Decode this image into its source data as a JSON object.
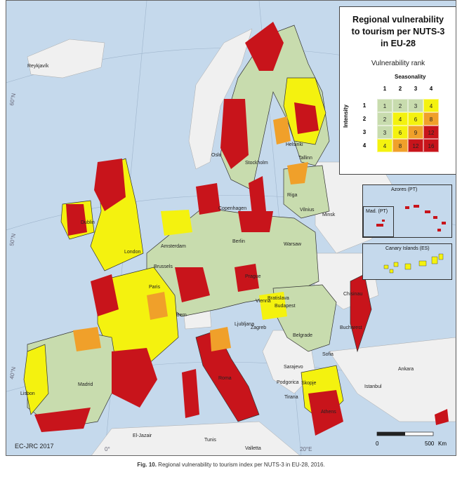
{
  "map": {
    "credit": "EC-JRC 2017",
    "coords": [
      "60°N",
      "50°N",
      "40°N",
      "0°",
      "20°E"
    ],
    "cities": [
      "Reykjavík",
      "Oslo",
      "Stockholm",
      "Helsinki",
      "Tallinn",
      "Riga",
      "Vilnius",
      "Minsk",
      "Copenhagen",
      "Dublin",
      "London",
      "Amsterdam",
      "Brussels",
      "Berlin",
      "Warsaw",
      "Paris",
      "Prague",
      "Vienna",
      "Bratislava",
      "Budapest",
      "Bern",
      "Ljubljana",
      "Zagreb",
      "Belgrade",
      "Bucharest",
      "Chisinau",
      "Sarajevo",
      "Podgorica",
      "Skopje",
      "Sofia",
      "Tirana",
      "Roma",
      "Madrid",
      "Lisbon",
      "Athens",
      "Ankara",
      "Istanbul",
      "El-Jazair",
      "Tunis",
      "Valletta"
    ],
    "colors": {
      "sea": "#c5d9ec",
      "nonEU": "#f0f0f0",
      "low": "#c8dcae",
      "medium": "#f4f20f",
      "high": "#f0a02a",
      "veryhigh": "#c8141b"
    },
    "scale": {
      "zero": "0",
      "max": "500",
      "unit": "Km"
    }
  },
  "legend": {
    "title_lines": [
      "Regional vulnerability",
      "to tourism per NUTS-3",
      "in EU-28"
    ],
    "subtitle": "Vulnerability rank",
    "seasonality_label": "Seasonality",
    "intensity_label": "Intensity",
    "columns": [
      "1",
      "2",
      "3",
      "4"
    ],
    "rows": [
      "1",
      "2",
      "3",
      "4"
    ],
    "matrix": [
      [
        "1",
        "2",
        "3",
        "4"
      ],
      [
        "2",
        "4",
        "6",
        "8"
      ],
      [
        "3",
        "6",
        "9",
        "12"
      ],
      [
        "4",
        "8",
        "12",
        "16"
      ]
    ]
  },
  "insets": {
    "azores": "Azores (PT)",
    "madeira": "Mad. (PT)",
    "canary": "Canary Islands (ES)"
  },
  "caption": {
    "fig": "Fig. 10.",
    "text": "Regional vulnerability to tourism index per NUTS-3 in EU-28, 2016."
  }
}
